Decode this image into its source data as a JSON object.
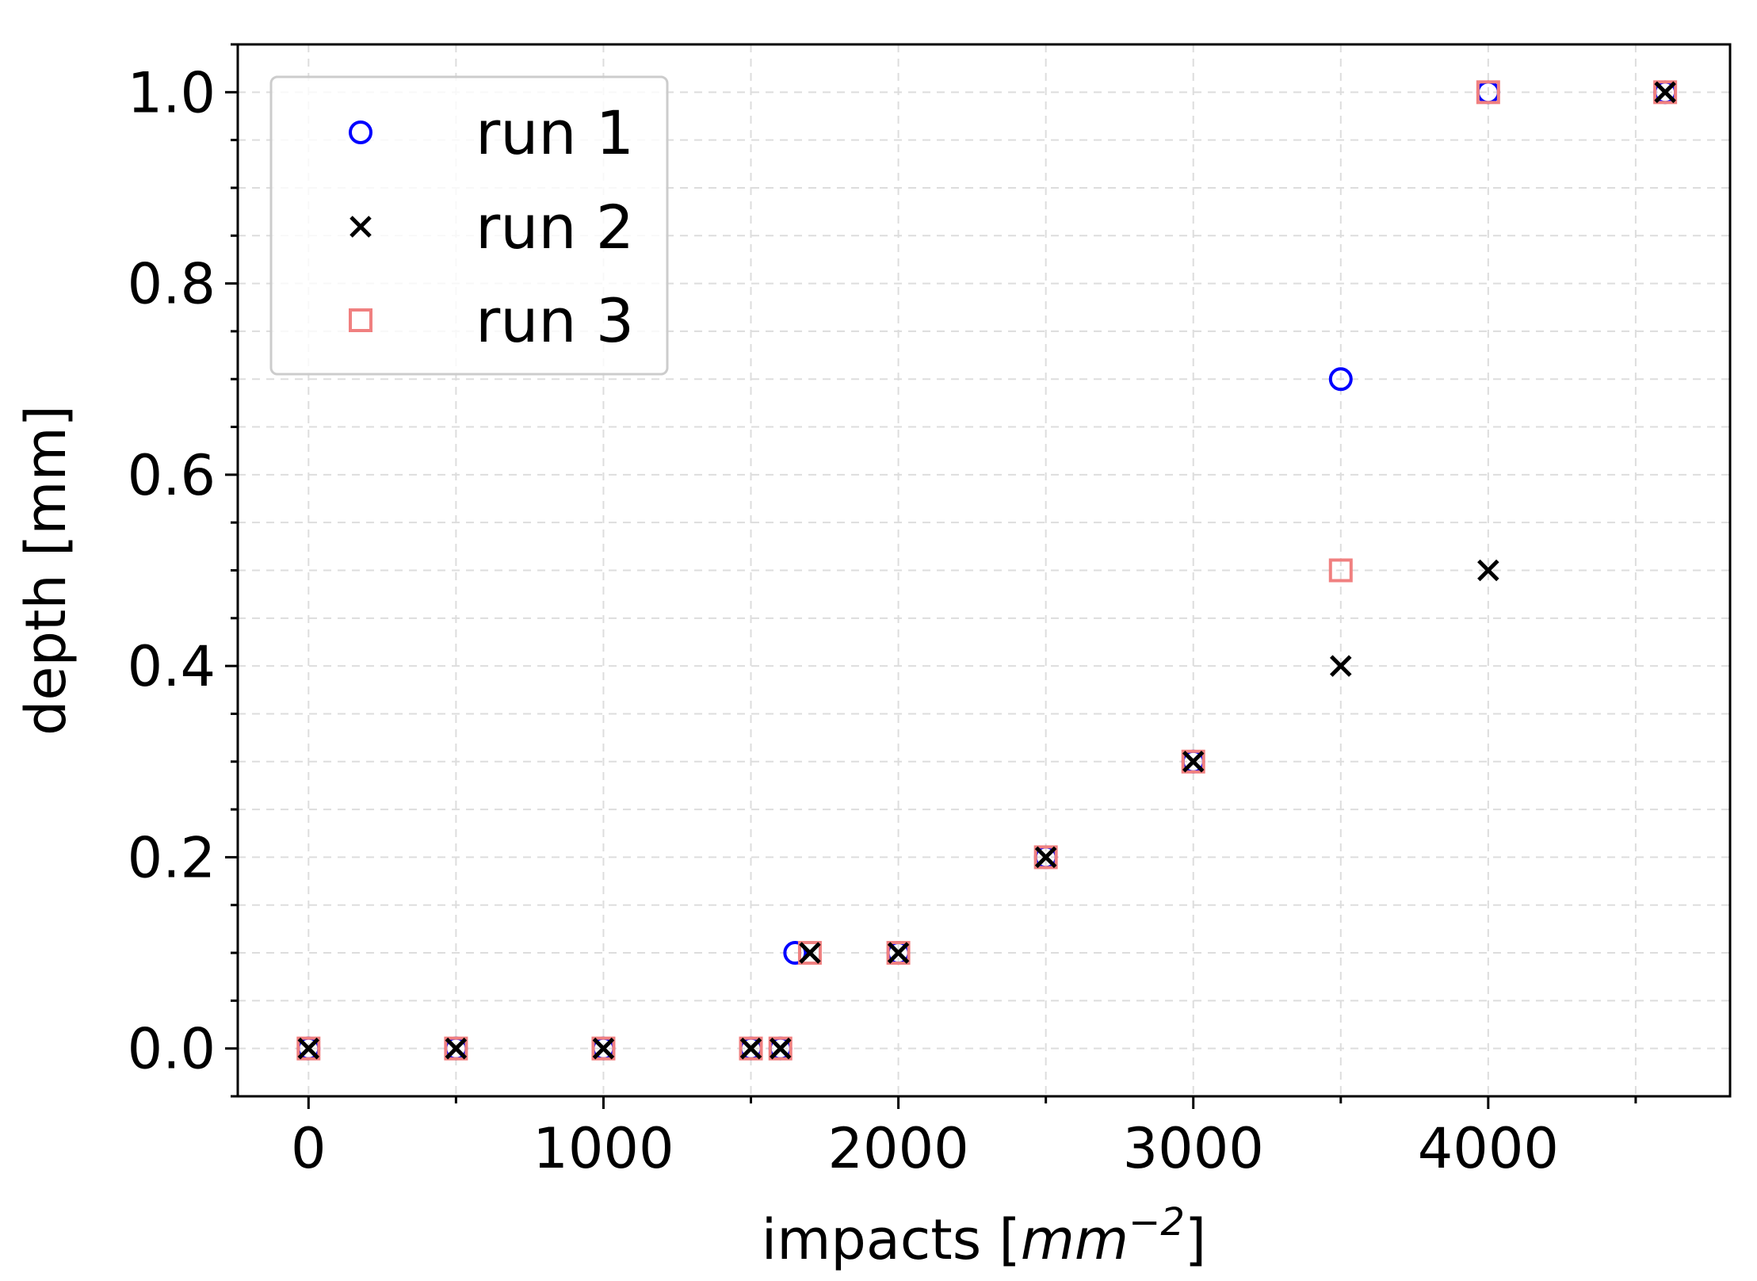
{
  "chart_data": {
    "type": "scatter",
    "title": "",
    "xlabel": "impacts [mm⁻²]",
    "xlabel_parts": {
      "prefix": "impacts [",
      "unit": "mm",
      "exponent": "−2",
      "suffix": "]"
    },
    "ylabel": "depth [mm]",
    "xlim": [
      -240,
      4820
    ],
    "ylim": [
      -0.05,
      1.05
    ],
    "xticks": [
      0,
      1000,
      2000,
      3000,
      4000
    ],
    "xtick_labels": [
      "0",
      "1000",
      "2000",
      "3000",
      "4000"
    ],
    "xminor": [
      500,
      1500,
      2500,
      3500,
      4500
    ],
    "yticks": [
      0.0,
      0.2,
      0.4,
      0.6,
      0.8,
      1.0
    ],
    "ytick_labels": [
      "0.0",
      "0.2",
      "0.4",
      "0.6",
      "0.8",
      "1.0"
    ],
    "yminor": [
      -0.05,
      0.05,
      0.1,
      0.15,
      0.25,
      0.3,
      0.35,
      0.45,
      0.5,
      0.55,
      0.65,
      0.7,
      0.75,
      0.85,
      0.9,
      0.95,
      1.05
    ],
    "grid": true,
    "legend_position": "upper-left",
    "series": [
      {
        "name": "run 1",
        "marker": "circle",
        "color": "#0000ff",
        "x": [
          0,
          500,
          1000,
          1500,
          1600,
          1650,
          2000,
          2500,
          3000,
          3500,
          4000,
          4600
        ],
        "y": [
          0.0,
          0.0,
          0.0,
          0.0,
          0.0,
          0.1,
          0.1,
          0.2,
          0.3,
          0.7,
          1.0,
          1.0
        ]
      },
      {
        "name": "run 2",
        "marker": "x",
        "color": "#000000",
        "x": [
          0,
          500,
          1000,
          1500,
          1600,
          1700,
          2000,
          2500,
          3000,
          3500,
          4000,
          4600
        ],
        "y": [
          0.0,
          0.0,
          0.0,
          0.0,
          0.0,
          0.1,
          0.1,
          0.2,
          0.3,
          0.4,
          0.5,
          1.0
        ]
      },
      {
        "name": "run 3",
        "marker": "square",
        "color": "#f08080",
        "x": [
          0,
          500,
          1000,
          1500,
          1600,
          1700,
          2000,
          2500,
          3000,
          3500,
          4000,
          4600
        ],
        "y": [
          0.0,
          0.0,
          0.0,
          0.0,
          0.0,
          0.1,
          0.1,
          0.2,
          0.3,
          0.5,
          1.0,
          1.0
        ]
      }
    ]
  }
}
